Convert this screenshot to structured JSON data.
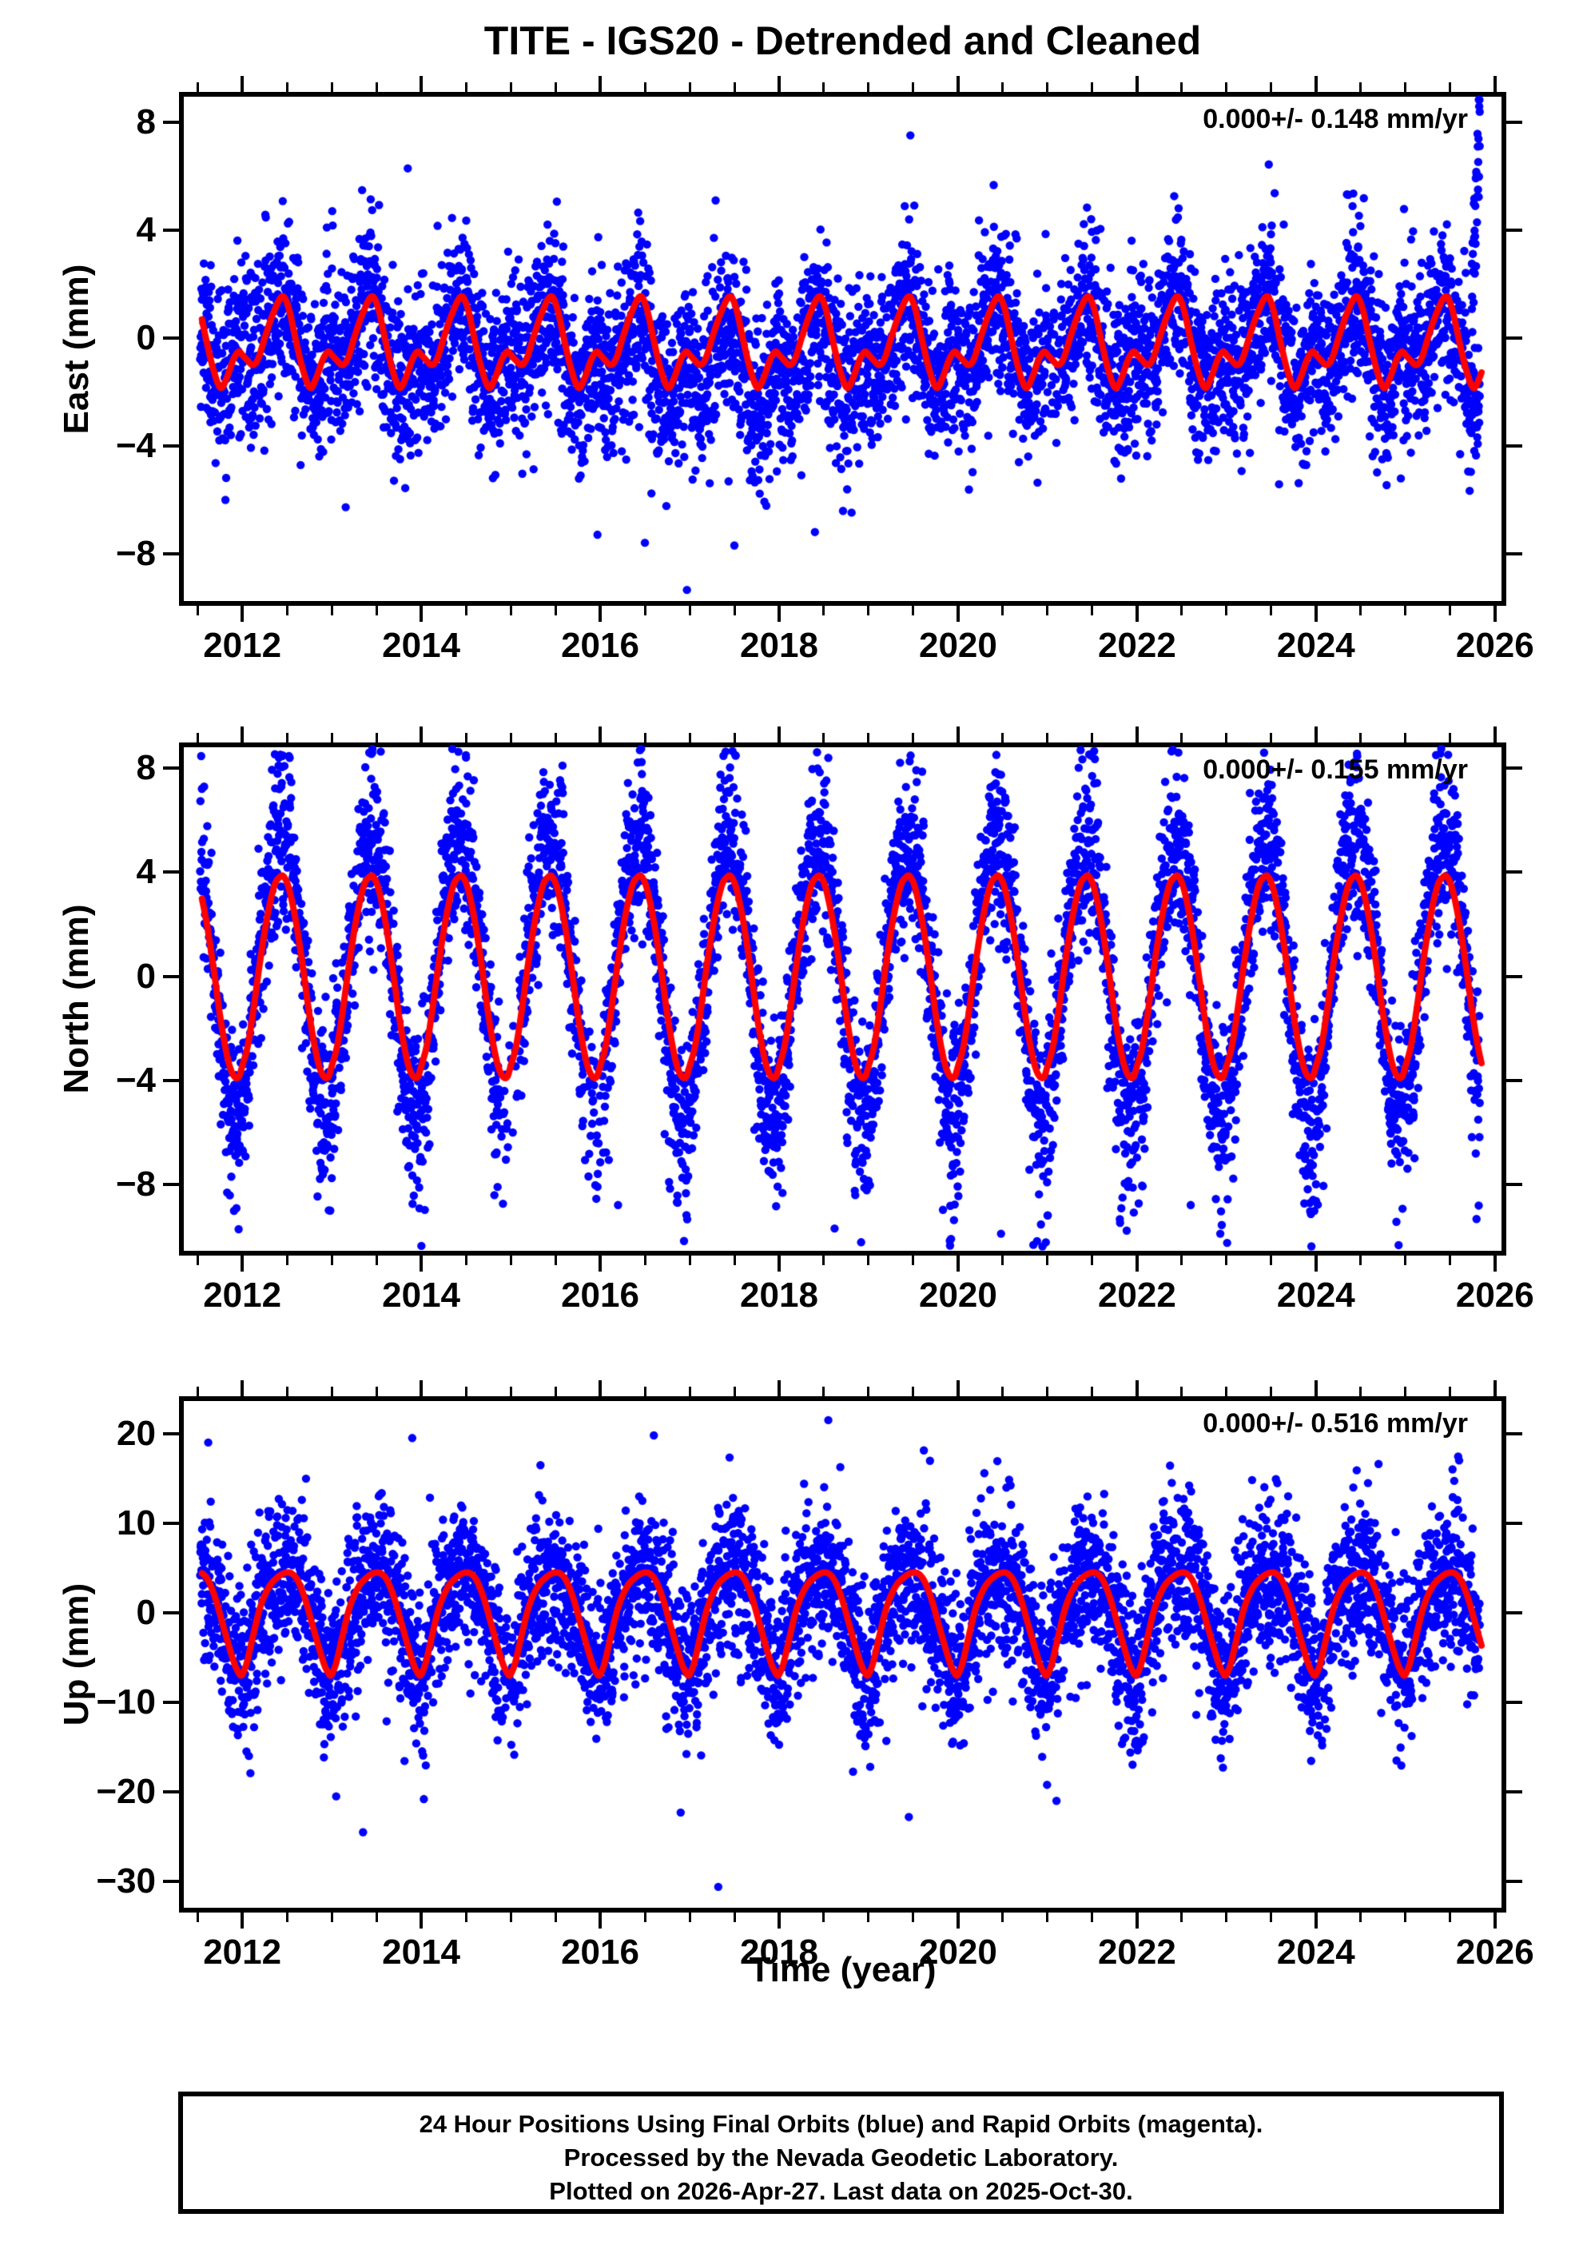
{
  "title": "TITE - IGS20 - Detrended and Cleaned",
  "x_axis": {
    "label": "Time (year)",
    "min": 2011.32,
    "max": 2026.1,
    "major_ticks": [
      2012,
      2014,
      2016,
      2018,
      2020,
      2022,
      2024,
      2026
    ],
    "minor_step": 0.5,
    "data_start": 2011.53,
    "data_end": 2025.83
  },
  "footer": {
    "lines": [
      "24 Hour Positions Using Final Orbits (blue) and Rapid Orbits (magenta).",
      "Processed by the Nevada Geodetic Laboratory.",
      "Plotted on 2026-Apr-27. Last data on 2025-Oct-30."
    ]
  },
  "colors": {
    "points": "#0000ff",
    "model_curve": "#ff0000",
    "frame": "#000000",
    "background": "#ffffff"
  },
  "chart_data": [
    {
      "type": "scatter",
      "name": "east",
      "ylabel": "East (mm)",
      "annotation": "0.000+/- 0.148 mm/yr",
      "ylim": [
        -9.85,
        9.05
      ],
      "yticks": [
        8,
        4,
        0,
        -4,
        -8
      ],
      "seasonal_model_mm": [
        [
          0.0,
          -0.62
        ],
        [
          0.05,
          -0.8
        ],
        [
          0.12,
          -1.0
        ],
        [
          0.18,
          -0.75
        ],
        [
          0.26,
          0.1
        ],
        [
          0.35,
          0.95
        ],
        [
          0.45,
          1.55
        ],
        [
          0.52,
          1.1
        ],
        [
          0.6,
          -0.1
        ],
        [
          0.68,
          -1.2
        ],
        [
          0.76,
          -1.85
        ],
        [
          0.83,
          -1.45
        ],
        [
          0.9,
          -0.8
        ],
        [
          0.96,
          -0.5
        ]
      ],
      "scatter_model": {
        "seed": 11,
        "sigma": 1.55,
        "bias": {
          "center": 2017.3,
          "width": 1.35,
          "amp": -0.85
        },
        "neg_tails": [
          {
            "t0": 2015.9,
            "t1": 2019.3,
            "phase": [
              0.25,
              0.65
            ],
            "prob": 0.06,
            "base": 1.5,
            "mult": 2.0
          },
          {
            "t0": 2019.5,
            "t1": 2025.9,
            "phase": [
              0.0,
              1.0
            ],
            "prob": 0.02,
            "base": 1.0,
            "mult": 1.4
          }
        ],
        "pos_tails": [],
        "end_spike": {
          "t0": 2025.74,
          "rate": 60,
          "base": 2.0
        },
        "gaps": [
          [
            2020.8,
            2021.15,
            0.35
          ]
        ],
        "clip": [
          -9.7,
          8.95
        ]
      },
      "outliers": [
        [
          2013.85,
          6.3
        ],
        [
          2016.97,
          -9.35
        ],
        [
          2016.5,
          -7.6
        ],
        [
          2017.5,
          -7.7
        ],
        [
          2018.4,
          -7.2
        ],
        [
          2015.97,
          -7.3
        ],
        [
          2025.82,
          8.85
        ],
        [
          2025.83,
          8.4
        ]
      ]
    },
    {
      "type": "scatter",
      "name": "north",
      "ylabel": "North (mm)",
      "annotation": "0.000+/- 0.155 mm/yr",
      "ylim": [
        -10.65,
        8.9
      ],
      "yticks": [
        8,
        4,
        0,
        -4,
        -8
      ],
      "seasonal_model_mm": [
        [
          0.0,
          -3.45
        ],
        [
          0.06,
          -2.7
        ],
        [
          0.12,
          -1.4
        ],
        [
          0.2,
          0.6
        ],
        [
          0.28,
          2.3
        ],
        [
          0.36,
          3.5
        ],
        [
          0.42,
          3.82
        ],
        [
          0.46,
          3.85
        ],
        [
          0.52,
          3.4
        ],
        [
          0.6,
          2.1
        ],
        [
          0.68,
          0.3
        ],
        [
          0.76,
          -1.7
        ],
        [
          0.84,
          -3.2
        ],
        [
          0.9,
          -3.8
        ],
        [
          0.96,
          -3.88
        ]
      ],
      "scatter_model": {
        "seed": 22,
        "sigma": 1.35,
        "gain": {
          "spread": 0.45
        },
        "neg_tails": [
          {
            "t0": 2015.6,
            "t1": 2025.9,
            "phase": [
              0.72,
              1.12
            ],
            "prob": 0.1,
            "base": 1.2,
            "mult": 2.0
          }
        ],
        "pos_tails": [
          {
            "t0": 2011.5,
            "t1": 2015.6,
            "phase": [
              0.2,
              0.7
            ],
            "prob": 0.08,
            "base": 0.8,
            "mult": 1.5
          }
        ],
        "gaps": [
          [
            2014.88,
            2015.1,
            0.7
          ],
          [
            2015.82,
            2016.03,
            0.55
          ]
        ],
        "clip": [
          -10.4,
          8.75
        ]
      },
      "outliers": [
        [
          2012.53,
          8.4
        ],
        [
          2013.42,
          8.6
        ],
        [
          2014.5,
          8.5
        ],
        [
          2018.55,
          8.4
        ],
        [
          2023.42,
          8.6
        ],
        [
          2016.2,
          -8.8
        ],
        [
          2018.62,
          -9.7
        ],
        [
          2020.48,
          -9.9
        ],
        [
          2021.0,
          -9.2
        ],
        [
          2022.6,
          -8.8
        ],
        [
          2024.0,
          -8.0
        ],
        [
          2011.85,
          -5.6
        ]
      ]
    },
    {
      "type": "scatter",
      "name": "up",
      "ylabel": "Up (mm)",
      "annotation": "0.000+/- 0.516 mm/yr",
      "ylim": [
        -33.2,
        23.9
      ],
      "yticks": [
        20,
        10,
        0,
        -10,
        -20,
        -30
      ],
      "seasonal_model_mm": [
        [
          0.0,
          -6.9
        ],
        [
          0.05,
          -5.6
        ],
        [
          0.12,
          -2.6
        ],
        [
          0.2,
          0.6
        ],
        [
          0.3,
          2.9
        ],
        [
          0.4,
          4.0
        ],
        [
          0.48,
          4.45
        ],
        [
          0.55,
          4.4
        ],
        [
          0.62,
          3.6
        ],
        [
          0.7,
          1.6
        ],
        [
          0.78,
          -1.2
        ],
        [
          0.86,
          -4.0
        ],
        [
          0.92,
          -5.9
        ],
        [
          0.96,
          -6.7
        ],
        [
          0.98,
          -7.0
        ]
      ],
      "scatter_model": {
        "seed": 33,
        "sigma": 4.3,
        "neg_tails": [
          {
            "t0": 2011.5,
            "t1": 2025.9,
            "phase": [
              0.0,
              1.0
            ],
            "prob": 0.045,
            "base": 2.0,
            "mult": 3.5
          }
        ],
        "pos_tails": [
          {
            "t0": 2011.5,
            "t1": 2025.9,
            "phase": [
              0.0,
              1.0
            ],
            "prob": 0.012,
            "base": 2.0,
            "mult": 2.5
          }
        ],
        "gaps": [
          [
            2014.88,
            2015.08,
            0.5
          ]
        ],
        "clip": [
          -32.5,
          23.0
        ]
      },
      "outliers": [
        [
          2011.62,
          19.0
        ],
        [
          2013.35,
          -24.5
        ],
        [
          2017.32,
          -30.6
        ],
        [
          2018.55,
          21.5
        ],
        [
          2016.9,
          -22.3
        ],
        [
          2019.45,
          -22.8
        ],
        [
          2021.1,
          -21.0
        ],
        [
          2013.9,
          19.5
        ],
        [
          2016.6,
          19.8
        ],
        [
          2024.9,
          -16.5
        ],
        [
          2025.6,
          17.0
        ],
        [
          2013.05,
          -20.5
        ]
      ]
    }
  ]
}
